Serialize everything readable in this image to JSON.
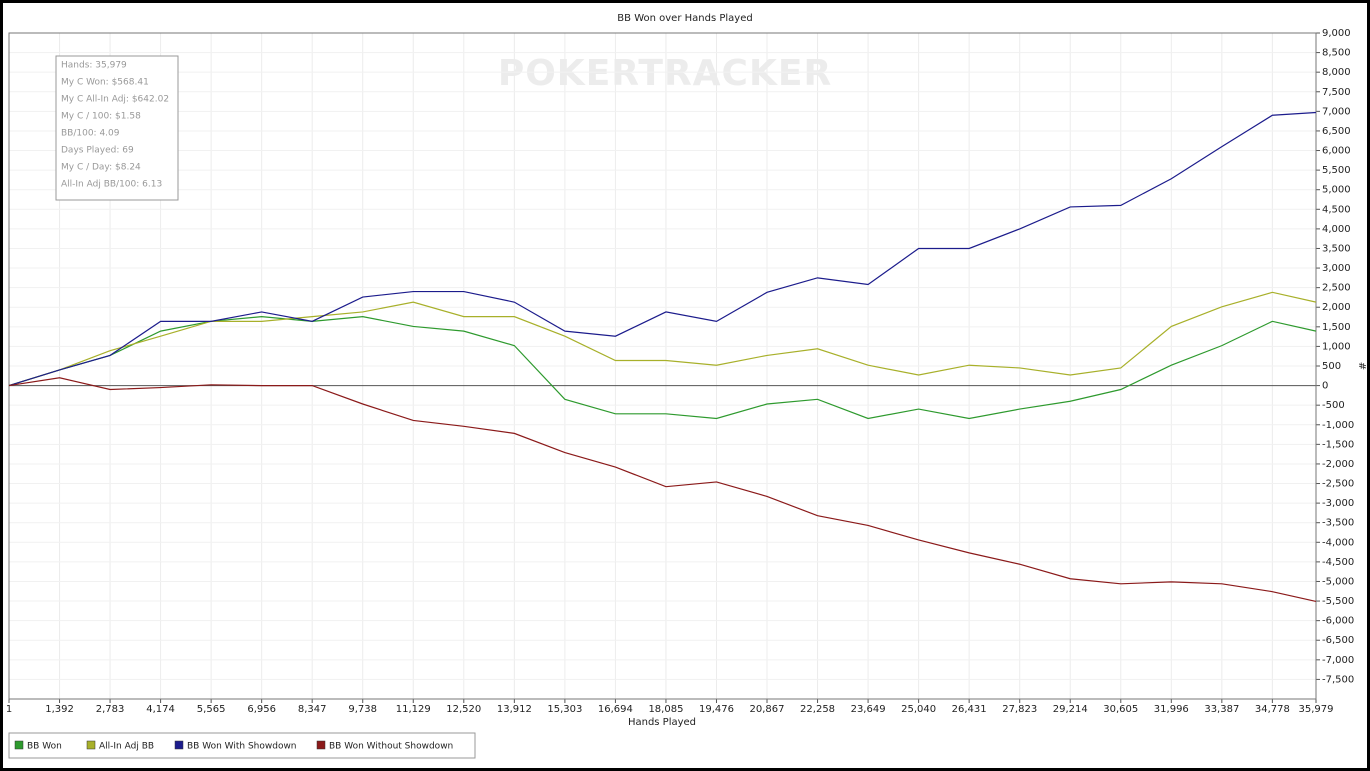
{
  "chart_data": {
    "type": "line",
    "title": "BB Won over Hands Played",
    "xlabel": "Hands Played",
    "ylabel": "#",
    "watermark": "POKERTRACKER",
    "stats_box": [
      "Hands: 35,979",
      "My C Won: $568.41",
      "My C All-In Adj: $642.02",
      "My C / 100: $1.58",
      "BB/100: 4.09",
      "Days Played: 69",
      "My C / Day: $8.24",
      "All-In Adj BB/100: 6.13"
    ],
    "x": [
      1,
      1392,
      2783,
      4174,
      5565,
      6956,
      8347,
      9738,
      11129,
      12520,
      13912,
      15303,
      16694,
      18085,
      19476,
      20867,
      22258,
      23649,
      25040,
      26431,
      27823,
      29214,
      30605,
      31996,
      33387,
      34778,
      35979
    ],
    "series": [
      {
        "name": "BB Won",
        "color": "#2e9a2e",
        "values": [
          0,
          400,
          770,
          1390,
          1640,
          1760,
          1640,
          1760,
          1510,
          1390,
          1020,
          -350,
          -720,
          -720,
          -840,
          -470,
          -350,
          -840,
          -600,
          -840,
          -600,
          -400,
          -100,
          520,
          1020,
          1640,
          1390
        ]
      },
      {
        "name": "All-In Adj BB",
        "color": "#a8b02a",
        "values": [
          0,
          400,
          890,
          1260,
          1640,
          1640,
          1760,
          1880,
          2130,
          1760,
          1760,
          1260,
          640,
          640,
          520,
          770,
          940,
          520,
          270,
          520,
          450,
          270,
          450,
          1510,
          2010,
          2380,
          2130
        ]
      },
      {
        "name": "BB Won With Showdown",
        "color": "#1c1c8c",
        "values": [
          0,
          400,
          770,
          1640,
          1640,
          1880,
          1640,
          2260,
          2400,
          2400,
          2130,
          1390,
          1260,
          1880,
          1640,
          2380,
          2750,
          2580,
          3500,
          3500,
          4000,
          4560,
          4600,
          5280,
          6100,
          6900,
          6970
        ]
      },
      {
        "name": "BB Won Without Showdown",
        "color": "#8b1a1a",
        "values": [
          0,
          200,
          -100,
          -50,
          20,
          0,
          0,
          -470,
          -890,
          -1040,
          -1220,
          -1710,
          -2080,
          -2580,
          -2460,
          -2830,
          -3320,
          -3570,
          -3940,
          -4270,
          -4560,
          -4930,
          -5060,
          -5010,
          -5060,
          -5260,
          -5510
        ]
      }
    ],
    "xlim": [
      1,
      35979
    ],
    "xticks": [
      1,
      {
        "value": 1392,
        "label": "1,392"
      },
      {
        "value": 2783,
        "label": "2,783"
      },
      {
        "value": 4174,
        "label": "4,174"
      },
      {
        "value": 5565,
        "label": "5,565"
      },
      {
        "value": 6956,
        "label": "6,956"
      },
      {
        "value": 8347,
        "label": "8,347"
      },
      {
        "value": 9738,
        "label": "9,738"
      },
      {
        "value": 11129,
        "label": "11,129"
      },
      {
        "value": 12520,
        "label": "12,520"
      },
      {
        "value": 13912,
        "label": "13,912"
      },
      {
        "value": 15303,
        "label": "15,303"
      },
      {
        "value": 16694,
        "label": "16,694"
      },
      {
        "value": 18085,
        "label": "18,085"
      },
      {
        "value": 19476,
        "label": "19,476"
      },
      {
        "value": 20867,
        "label": "20,867"
      },
      {
        "value": 22258,
        "label": "22,258"
      },
      {
        "value": 23649,
        "label": "23,649"
      },
      {
        "value": 25040,
        "label": "25,040"
      },
      {
        "value": 26431,
        "label": "26,431"
      },
      {
        "value": 27823,
        "label": "27,823"
      },
      {
        "value": 29214,
        "label": "29,214"
      },
      {
        "value": 30605,
        "label": "30,605"
      },
      {
        "value": 31996,
        "label": "31,996"
      },
      {
        "value": 33387,
        "label": "33,387"
      },
      {
        "value": 34778,
        "label": "34,778"
      },
      {
        "value": 35979,
        "label": "35,979"
      }
    ],
    "ylim": [
      -8000,
      9000
    ],
    "yticks": [
      {
        "value": 9000,
        "label": "9,000"
      },
      {
        "value": 8500,
        "label": "8,500"
      },
      {
        "value": 8000,
        "label": "8,000"
      },
      {
        "value": 7500,
        "label": "7,500"
      },
      {
        "value": 7000,
        "label": "7,000"
      },
      {
        "value": 6500,
        "label": "6,500"
      },
      {
        "value": 6000,
        "label": "6,000"
      },
      {
        "value": 5500,
        "label": "5,500"
      },
      {
        "value": 5000,
        "label": "5,000"
      },
      {
        "value": 4500,
        "label": "4,500"
      },
      {
        "value": 4000,
        "label": "4,000"
      },
      {
        "value": 3500,
        "label": "3,500"
      },
      {
        "value": 3000,
        "label": "3,000"
      },
      {
        "value": 2500,
        "label": "2,500"
      },
      {
        "value": 2000,
        "label": "2,000"
      },
      {
        "value": 1500,
        "label": "1,500"
      },
      {
        "value": 1000,
        "label": "1,000"
      },
      500,
      0,
      -500,
      {
        "value": -1000,
        "label": "-1,000"
      },
      {
        "value": -1500,
        "label": "-1,500"
      },
      {
        "value": -2000,
        "label": "-2,000"
      },
      {
        "value": -2500,
        "label": "-2,500"
      },
      {
        "value": -3000,
        "label": "-3,000"
      },
      {
        "value": -3500,
        "label": "-3,500"
      },
      {
        "value": -4000,
        "label": "-4,000"
      },
      {
        "value": -4500,
        "label": "-4,500"
      },
      {
        "value": -5000,
        "label": "-5,000"
      },
      {
        "value": -5500,
        "label": "-5,500"
      },
      {
        "value": -6000,
        "label": "-6,000"
      },
      {
        "value": -6500,
        "label": "-6,500"
      },
      {
        "value": -7000,
        "label": "-7,000"
      },
      {
        "value": -7500,
        "label": "-7,500"
      }
    ],
    "grid": true
  }
}
